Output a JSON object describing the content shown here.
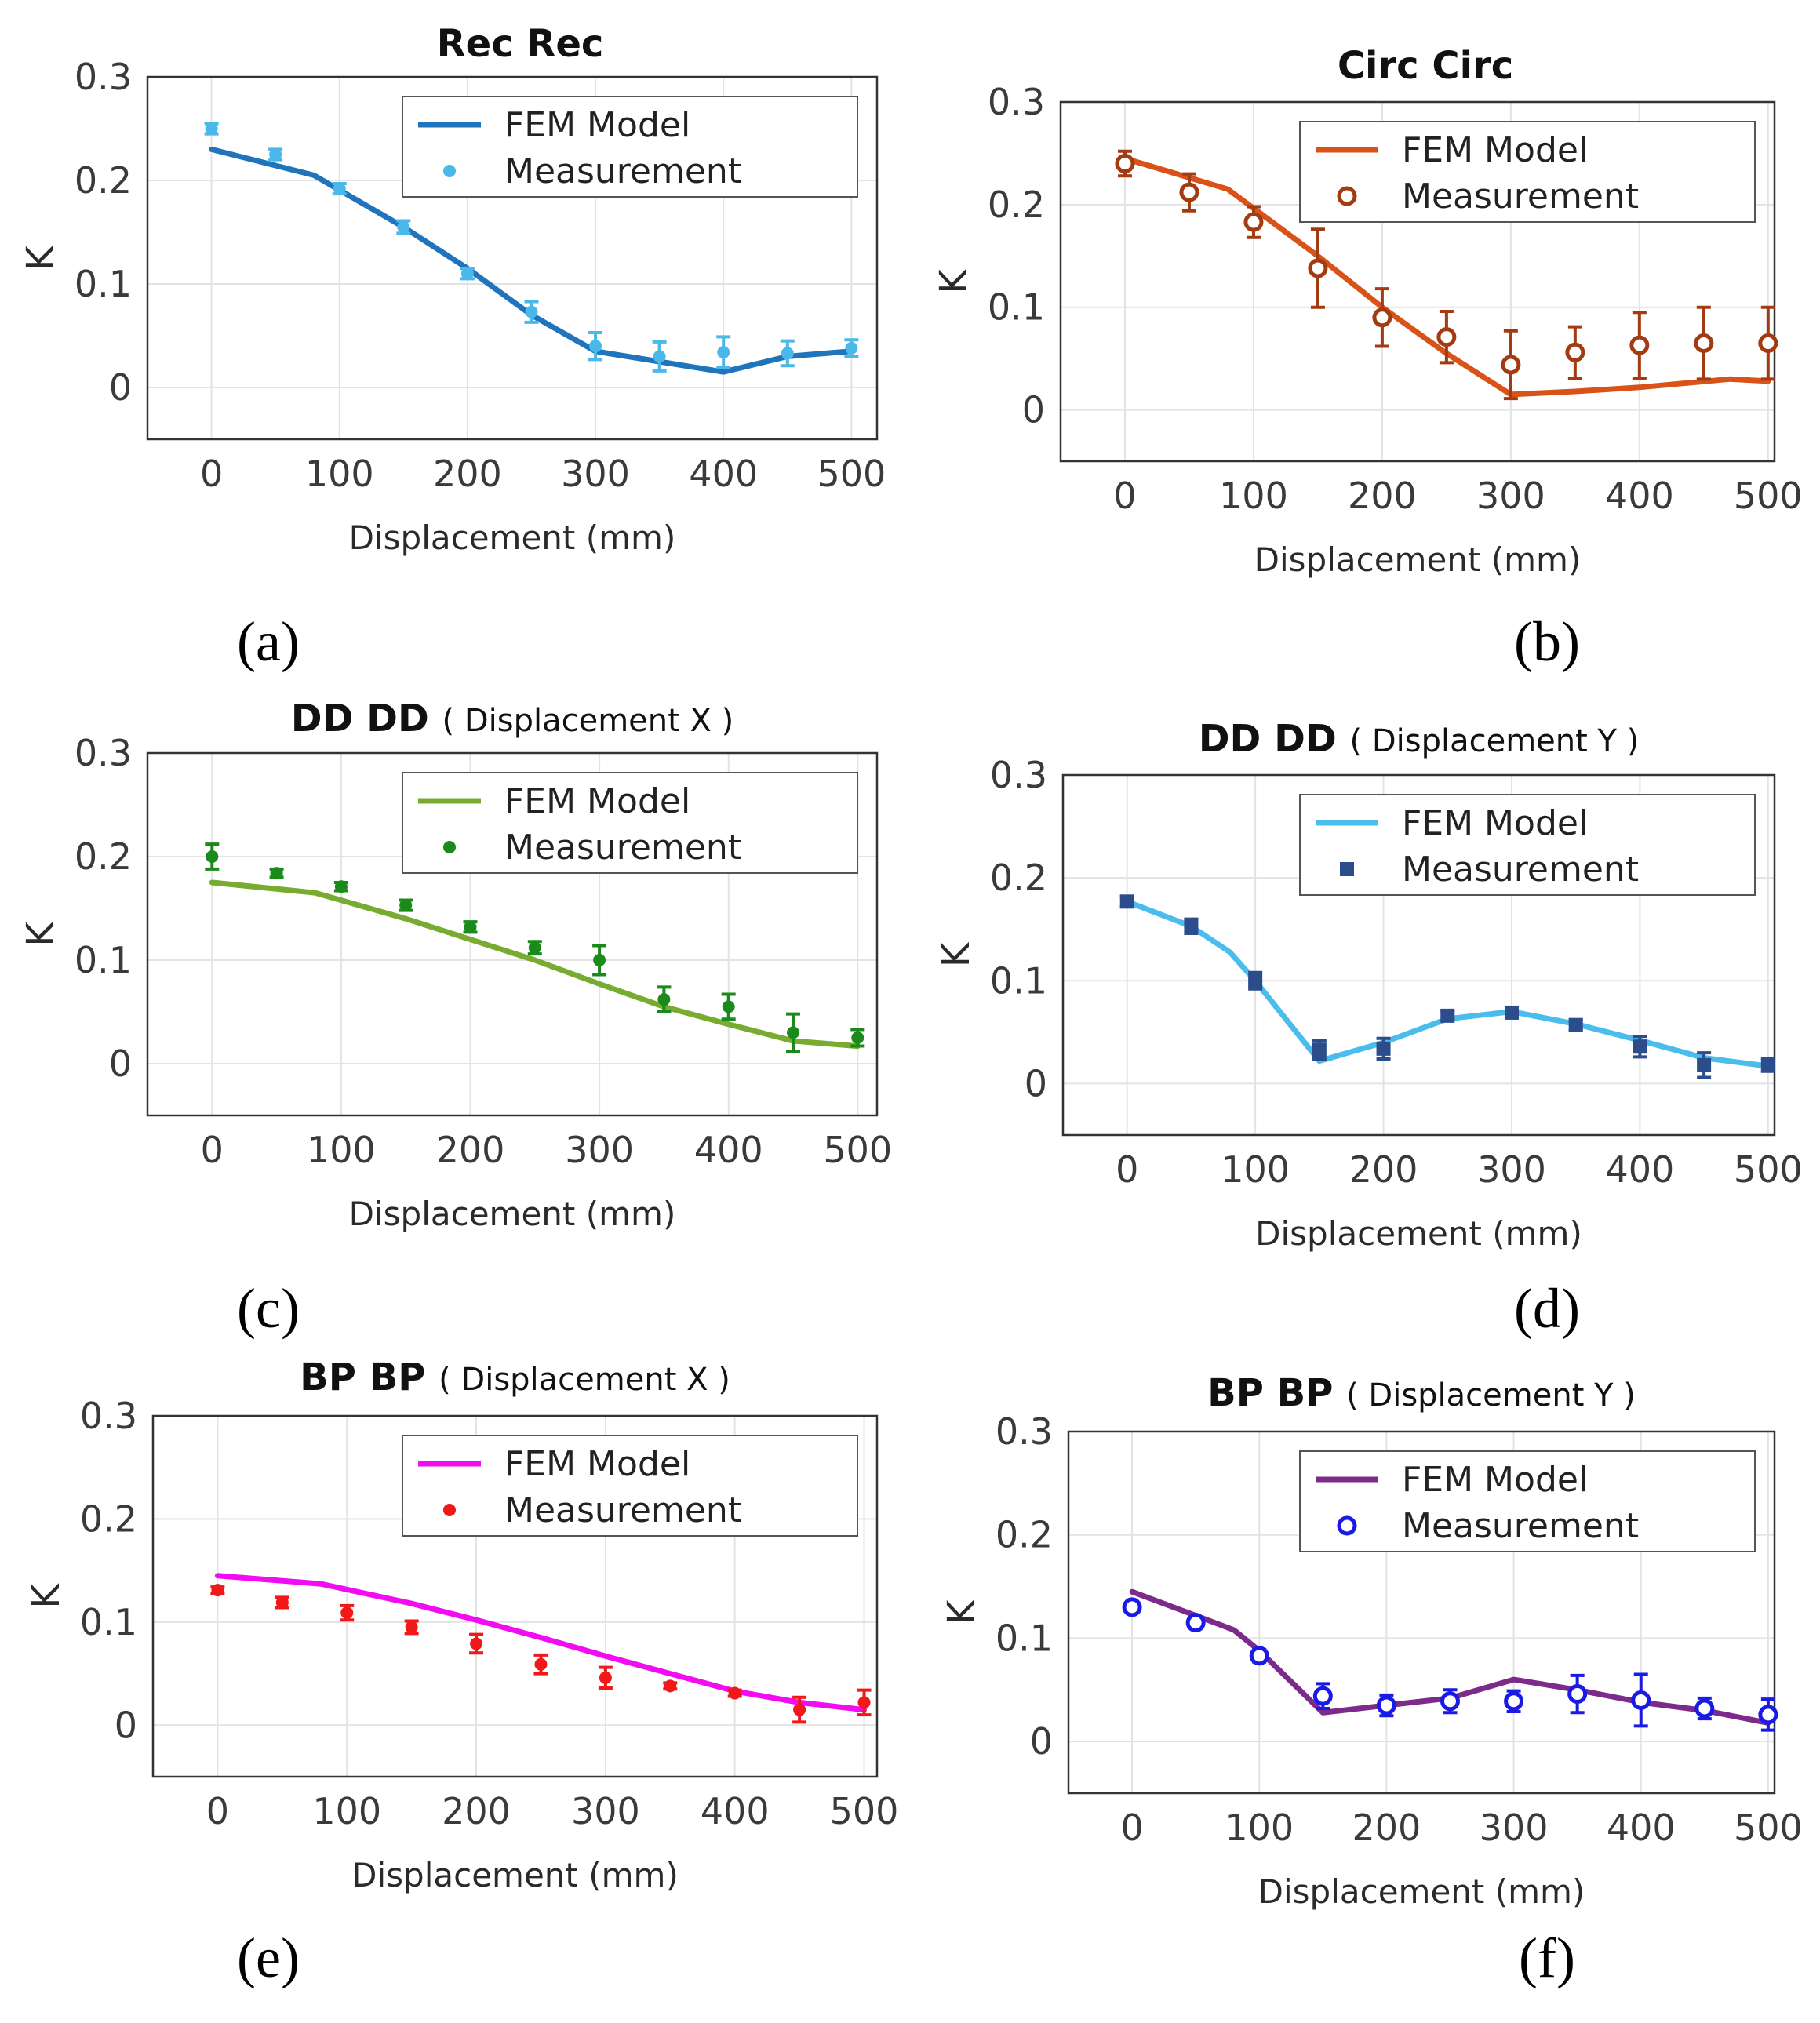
{
  "figure": {
    "panel_labels": [
      "(a)",
      "(b)",
      "(c)",
      "(d)",
      "(e)",
      "(f)"
    ]
  },
  "chart_data": [
    {
      "type": "line",
      "panel": "(a)",
      "title": "Rec Rec",
      "subtitle": "",
      "xlabel": "Displacement (mm)",
      "ylabel": "K",
      "xlim": [
        -50,
        520
      ],
      "ylim": [
        -0.05,
        0.3
      ],
      "xticks": [
        0,
        100,
        200,
        300,
        400,
        500
      ],
      "yticks": [
        0,
        0.1,
        0.2,
        0.3
      ],
      "xtick_labels": [
        "0",
        "100",
        "200",
        "300",
        "400",
        "500"
      ],
      "ytick_labels": [
        "0",
        "0.1",
        "0.2",
        "0.3"
      ],
      "grid": true,
      "legend": {
        "position": "top-right",
        "entries": [
          "FEM Model",
          "Measurement"
        ]
      },
      "series": [
        {
          "name": "FEM Model",
          "kind": "line",
          "color": "#1f74bb",
          "x": [
            0,
            80,
            150,
            200,
            250,
            300,
            350,
            400,
            450,
            500
          ],
          "y": [
            0.23,
            0.205,
            0.155,
            0.115,
            0.07,
            0.035,
            0.025,
            0.015,
            0.03,
            0.035
          ]
        },
        {
          "name": "Measurement",
          "kind": "errorbar",
          "color": "#4ab8e8",
          "marker": "dot",
          "x": [
            0,
            50,
            100,
            150,
            200,
            250,
            300,
            350,
            400,
            450,
            500
          ],
          "y": [
            0.25,
            0.225,
            0.192,
            0.155,
            0.11,
            0.073,
            0.04,
            0.03,
            0.034,
            0.033,
            0.038
          ],
          "err": [
            0.005,
            0.005,
            0.005,
            0.006,
            0.005,
            0.01,
            0.013,
            0.014,
            0.015,
            0.012,
            0.008
          ]
        }
      ]
    },
    {
      "type": "line",
      "panel": "(b)",
      "title": "Circ Circ",
      "subtitle": "",
      "xlabel": "Displacement (mm)",
      "ylabel": "K",
      "xlim": [
        -50,
        505
      ],
      "ylim": [
        -0.05,
        0.3
      ],
      "xticks": [
        0,
        100,
        200,
        300,
        400,
        500
      ],
      "yticks": [
        0,
        0.1,
        0.2,
        0.3
      ],
      "xtick_labels": [
        "0",
        "100",
        "200",
        "300",
        "400",
        "500"
      ],
      "ytick_labels": [
        "0",
        "0.1",
        "0.2",
        "0.3"
      ],
      "grid": true,
      "legend": {
        "position": "top-right",
        "entries": [
          "FEM Model",
          "Measurement"
        ]
      },
      "series": [
        {
          "name": "FEM Model",
          "kind": "line",
          "color": "#d95319",
          "x": [
            0,
            80,
            150,
            200,
            250,
            300,
            350,
            400,
            470,
            500
          ],
          "y": [
            0.245,
            0.215,
            0.15,
            0.1,
            0.055,
            0.015,
            0.018,
            0.022,
            0.03,
            0.028
          ]
        },
        {
          "name": "Measurement",
          "kind": "errorbar",
          "color": "#a23b12",
          "marker": "circle",
          "x": [
            0,
            50,
            100,
            150,
            200,
            250,
            300,
            350,
            400,
            450,
            500
          ],
          "y": [
            0.24,
            0.212,
            0.183,
            0.138,
            0.09,
            0.071,
            0.044,
            0.056,
            0.063,
            0.065,
            0.065
          ],
          "err": [
            0.012,
            0.018,
            0.015,
            0.038,
            0.028,
            0.025,
            0.033,
            0.025,
            0.032,
            0.035,
            0.035
          ]
        }
      ]
    },
    {
      "type": "line",
      "panel": "(c)",
      "title": "DD DD",
      "subtitle": "( Displacement X )",
      "xlabel": "Displacement (mm)",
      "ylabel": "K",
      "xlim": [
        -50,
        515
      ],
      "ylim": [
        -0.05,
        0.3
      ],
      "xticks": [
        0,
        100,
        200,
        300,
        400,
        500
      ],
      "yticks": [
        0,
        0.1,
        0.2,
        0.3
      ],
      "xtick_labels": [
        "0",
        "100",
        "200",
        "300",
        "400",
        "500"
      ],
      "ytick_labels": [
        "0",
        "0.1",
        "0.2",
        "0.3"
      ],
      "grid": true,
      "legend": {
        "position": "top-right",
        "entries": [
          "FEM Model",
          "Measurement"
        ]
      },
      "series": [
        {
          "name": "FEM Model",
          "kind": "line",
          "color": "#77ac30",
          "x": [
            0,
            80,
            150,
            200,
            250,
            300,
            350,
            400,
            450,
            500
          ],
          "y": [
            0.175,
            0.165,
            0.14,
            0.12,
            0.1,
            0.077,
            0.055,
            0.038,
            0.022,
            0.017
          ]
        },
        {
          "name": "Measurement",
          "kind": "errorbar",
          "color": "#1a8a1a",
          "marker": "dot",
          "x": [
            0,
            50,
            100,
            150,
            200,
            250,
            300,
            350,
            400,
            450,
            500
          ],
          "y": [
            0.2,
            0.184,
            0.171,
            0.153,
            0.132,
            0.112,
            0.1,
            0.062,
            0.055,
            0.03,
            0.025
          ],
          "err": [
            0.012,
            0.004,
            0.004,
            0.005,
            0.005,
            0.006,
            0.014,
            0.012,
            0.012,
            0.018,
            0.008
          ]
        }
      ]
    },
    {
      "type": "line",
      "panel": "(d)",
      "title": "DD DD",
      "subtitle": "( Displacement Y )",
      "xlabel": "Displacement (mm)",
      "ylabel": "K",
      "xlim": [
        -50,
        505
      ],
      "ylim": [
        -0.05,
        0.3
      ],
      "xticks": [
        0,
        100,
        200,
        300,
        400,
        500
      ],
      "yticks": [
        0,
        0.1,
        0.2,
        0.3
      ],
      "xtick_labels": [
        "0",
        "100",
        "200",
        "300",
        "400",
        "500"
      ],
      "ytick_labels": [
        "0",
        "0.1",
        "0.2",
        "0.3"
      ],
      "grid": true,
      "legend": {
        "position": "top-right",
        "entries": [
          "FEM Model",
          "Measurement"
        ]
      },
      "series": [
        {
          "name": "FEM Model",
          "kind": "line",
          "color": "#4bbdec",
          "x": [
            0,
            50,
            80,
            100,
            150,
            200,
            250,
            300,
            350,
            400,
            450,
            500
          ],
          "y": [
            0.177,
            0.153,
            0.128,
            0.1,
            0.022,
            0.04,
            0.063,
            0.07,
            0.058,
            0.042,
            0.025,
            0.017
          ]
        },
        {
          "name": "Measurement",
          "kind": "errorbar",
          "color": "#2c4d8c",
          "marker": "square",
          "x": [
            0,
            50,
            100,
            150,
            200,
            250,
            300,
            350,
            400,
            450,
            500
          ],
          "y": [
            0.177,
            0.153,
            0.1,
            0.033,
            0.034,
            0.066,
            0.069,
            0.057,
            0.036,
            0.018,
            0.018
          ],
          "err": [
            0.005,
            0.007,
            0.008,
            0.009,
            0.01,
            0.005,
            0.004,
            0.005,
            0.01,
            0.012,
            0.006
          ]
        }
      ]
    },
    {
      "type": "line",
      "panel": "(e)",
      "title": "BP BP",
      "subtitle": "( Displacement X )",
      "xlabel": "Displacement (mm)",
      "ylabel": "K",
      "xlim": [
        -50,
        510
      ],
      "ylim": [
        -0.05,
        0.3
      ],
      "xticks": [
        0,
        100,
        200,
        300,
        400,
        500
      ],
      "yticks": [
        0,
        0.1,
        0.2,
        0.3
      ],
      "xtick_labels": [
        "0",
        "100",
        "200",
        "300",
        "400",
        "500"
      ],
      "ytick_labels": [
        "0",
        "0.1",
        "0.2",
        "0.3"
      ],
      "grid": true,
      "legend": {
        "position": "top-right",
        "entries": [
          "FEM Model",
          "Measurement"
        ]
      },
      "series": [
        {
          "name": "FEM Model",
          "kind": "line",
          "color": "#f20cf2",
          "x": [
            0,
            80,
            150,
            200,
            250,
            300,
            350,
            400,
            450,
            500
          ],
          "y": [
            0.145,
            0.137,
            0.118,
            0.102,
            0.085,
            0.067,
            0.05,
            0.033,
            0.022,
            0.015
          ]
        },
        {
          "name": "Measurement",
          "kind": "errorbar",
          "color": "#f01818",
          "marker": "dot",
          "x": [
            0,
            50,
            100,
            150,
            200,
            250,
            300,
            350,
            400,
            450,
            500
          ],
          "y": [
            0.131,
            0.119,
            0.109,
            0.095,
            0.079,
            0.059,
            0.046,
            0.038,
            0.031,
            0.015,
            0.022
          ],
          "err": [
            0.003,
            0.005,
            0.007,
            0.006,
            0.009,
            0.009,
            0.01,
            0.003,
            0.003,
            0.012,
            0.012
          ]
        }
      ]
    },
    {
      "type": "line",
      "panel": "(f)",
      "title": "BP BP",
      "subtitle": "( Displacement Y )",
      "xlabel": "Displacement (mm)",
      "ylabel": "K",
      "xlim": [
        -50,
        505
      ],
      "ylim": [
        -0.05,
        0.3
      ],
      "xticks": [
        0,
        100,
        200,
        300,
        400,
        500
      ],
      "yticks": [
        0,
        0.1,
        0.2,
        0.3
      ],
      "xtick_labels": [
        "0",
        "100",
        "200",
        "300",
        "400",
        "500"
      ],
      "ytick_labels": [
        "0",
        "0.1",
        "0.2",
        "0.3"
      ],
      "grid": true,
      "legend": {
        "position": "top-right",
        "entries": [
          "FEM Model",
          "Measurement"
        ]
      },
      "series": [
        {
          "name": "FEM Model",
          "kind": "line",
          "color": "#7d2b8b",
          "x": [
            0,
            50,
            80,
            100,
            150,
            200,
            250,
            300,
            350,
            400,
            450,
            500
          ],
          "y": [
            0.145,
            0.122,
            0.108,
            0.088,
            0.028,
            0.035,
            0.042,
            0.06,
            0.05,
            0.038,
            0.03,
            0.018
          ]
        },
        {
          "name": "Measurement",
          "kind": "errorbar",
          "color": "#1a1ae6",
          "marker": "circle",
          "x": [
            0,
            50,
            100,
            150,
            200,
            250,
            300,
            350,
            400,
            450,
            500
          ],
          "y": [
            0.13,
            0.115,
            0.083,
            0.044,
            0.035,
            0.039,
            0.039,
            0.046,
            0.04,
            0.032,
            0.026
          ],
          "err": [
            0.005,
            0.005,
            0.006,
            0.012,
            0.01,
            0.011,
            0.01,
            0.018,
            0.025,
            0.01,
            0.015
          ]
        }
      ]
    }
  ]
}
